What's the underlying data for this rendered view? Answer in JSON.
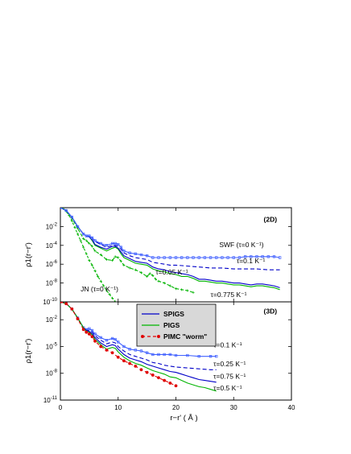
{
  "chart_data": [
    {
      "type": "line",
      "panel_tag": "(2D)",
      "ylabel": "ρ1(r−r')",
      "xlim": [
        0,
        40
      ],
      "ylim_log10": [
        -10,
        0
      ],
      "y_ticks": [
        {
          "exp": -2,
          "text": "10-2"
        },
        {
          "exp": -4,
          "text": "10-4"
        },
        {
          "exp": -6,
          "text": "10-6"
        },
        {
          "exp": -8,
          "text": "10-8"
        },
        {
          "exp": -10,
          "text": "10-10"
        }
      ],
      "series": [
        {
          "id": "jn",
          "color": "#00b400",
          "dash": "3,2",
          "marker": "plus",
          "x": [
            0,
            0.5,
            1,
            1.5,
            2,
            2.5,
            3,
            3.5,
            4,
            4.5,
            5,
            5.5,
            6,
            6.5,
            7,
            7.5,
            8,
            8.5,
            9,
            9.5
          ],
          "log10": [
            0,
            -0.1,
            -0.4,
            -0.8,
            -1.4,
            -2.1,
            -2.8,
            -3.5,
            -4.2,
            -4.9,
            -5.6,
            -6.1,
            -6.7,
            -7.3,
            -7.8,
            -8.3,
            -8.8,
            -9.2,
            -9.6,
            -10
          ]
        },
        {
          "id": "tau005",
          "color": "#00b400",
          "dash": "4,2",
          "marker": "plus",
          "x": [
            0,
            1,
            2,
            3,
            4,
            4.5,
            5,
            5.5,
            6,
            7,
            8,
            9,
            9.5,
            10,
            10.5,
            11,
            12,
            13,
            14,
            15,
            15.5,
            16,
            16.5,
            17,
            18,
            19,
            20,
            21,
            22,
            23
          ],
          "log10": [
            0,
            -0.3,
            -1.1,
            -2.2,
            -3.3,
            -3.5,
            -3.8,
            -4.1,
            -4.6,
            -5.0,
            -5.5,
            -5.6,
            -5.2,
            -5.3,
            -5.7,
            -6.1,
            -6.4,
            -6.6,
            -6.9,
            -7.3,
            -7.0,
            -7.2,
            -7.6,
            -7.8,
            -8.0,
            -8.3,
            -8.6,
            -8.7,
            -8.8,
            -9.0
          ]
        },
        {
          "id": "pigs2d",
          "color": "#00b400",
          "dash": "",
          "marker": "none",
          "x": [
            0,
            1,
            2,
            3,
            4,
            4.5,
            5,
            5.5,
            6,
            7,
            8,
            9,
            9.5,
            10,
            10.5,
            11,
            12,
            13,
            14,
            15,
            16,
            17,
            18,
            19,
            20,
            21,
            22,
            23,
            24,
            25,
            26,
            27,
            28,
            29,
            30,
            31,
            32,
            33,
            34,
            35,
            36,
            37,
            38
          ],
          "log10": [
            0,
            -0.3,
            -1.0,
            -2.0,
            -2.8,
            -3.0,
            -3.1,
            -3.5,
            -4.0,
            -4.3,
            -4.6,
            -4.3,
            -4.2,
            -4.4,
            -4.9,
            -5.3,
            -5.6,
            -5.9,
            -6.0,
            -6.1,
            -6.5,
            -6.7,
            -6.8,
            -7.0,
            -7.1,
            -7.3,
            -7.3,
            -7.5,
            -7.8,
            -7.8,
            -7.9,
            -8.0,
            -8.0,
            -8.1,
            -8.2,
            -8.2,
            -8.3,
            -8.4,
            -8.3,
            -8.3,
            -8.4,
            -8.5,
            -8.7
          ]
        },
        {
          "id": "tau0775",
          "color": "#0000c8",
          "dash": "",
          "marker": "none",
          "x": [
            0,
            1,
            2,
            3,
            4,
            4.5,
            5,
            5.5,
            6,
            7,
            8,
            9,
            9.5,
            10,
            10.5,
            11,
            12,
            13,
            14,
            15,
            16,
            17,
            18,
            19,
            20,
            21,
            22,
            23,
            24,
            25,
            26,
            27,
            28,
            29,
            30,
            31,
            32,
            33,
            34,
            35,
            36,
            37,
            38
          ],
          "log10": [
            0,
            -0.3,
            -1.0,
            -2.0,
            -2.8,
            -3.0,
            -3.1,
            -3.4,
            -3.9,
            -4.2,
            -4.4,
            -4.1,
            -4.1,
            -4.3,
            -4.7,
            -5.1,
            -5.4,
            -5.7,
            -5.8,
            -5.9,
            -6.3,
            -6.5,
            -6.6,
            -6.8,
            -6.9,
            -7.0,
            -7.1,
            -7.3,
            -7.6,
            -7.6,
            -7.7,
            -7.8,
            -7.8,
            -7.9,
            -8.0,
            -8.0,
            -8.1,
            -8.2,
            -8.1,
            -8.1,
            -8.2,
            -8.3,
            -8.5
          ]
        },
        {
          "id": "tau01",
          "color": "#0000c8",
          "dash": "5,3",
          "marker": "none",
          "x": [
            0,
            1,
            2,
            3,
            4,
            4.5,
            5,
            5.5,
            6,
            7,
            8,
            9,
            9.5,
            10,
            10.5,
            11,
            12,
            13,
            14,
            15,
            16,
            17,
            18,
            19,
            20,
            22,
            24,
            26,
            28,
            30,
            32,
            34,
            36,
            38
          ],
          "log10": [
            0,
            -0.3,
            -1.0,
            -2.0,
            -2.8,
            -3.0,
            -3.0,
            -3.2,
            -3.6,
            -3.9,
            -4.2,
            -4.0,
            -4.0,
            -4.1,
            -4.4,
            -4.8,
            -5.1,
            -5.3,
            -5.4,
            -5.5,
            -5.8,
            -5.9,
            -6.0,
            -6.1,
            -6.1,
            -6.2,
            -6.3,
            -6.4,
            -6.4,
            -6.5,
            -6.5,
            -6.5,
            -6.6,
            -6.6
          ]
        },
        {
          "id": "swf",
          "color": "#4060ff",
          "dash": "",
          "marker": "square",
          "x": [
            0,
            1,
            2,
            3,
            4,
            4.5,
            5,
            5.5,
            6,
            7,
            8,
            9,
            9.5,
            10,
            10.5,
            11,
            12,
            13,
            14,
            15,
            16,
            17,
            18,
            19,
            20,
            21,
            22,
            23,
            24,
            25,
            26,
            27,
            28,
            29,
            30,
            31,
            32,
            33,
            34,
            35,
            36,
            37,
            38
          ],
          "log10": [
            0,
            -0.3,
            -1.0,
            -2.0,
            -2.8,
            -3.0,
            -3.0,
            -3.2,
            -3.5,
            -3.8,
            -4.0,
            -3.8,
            -3.8,
            -3.9,
            -4.2,
            -4.6,
            -4.8,
            -4.9,
            -5.0,
            -5.1,
            -5.3,
            -5.3,
            -5.3,
            -5.3,
            -5.3,
            -5.3,
            -5.3,
            -5.3,
            -5.3,
            -5.3,
            -5.3,
            -5.3,
            -5.3,
            -5.3,
            -5.3,
            -5.3,
            -5.2,
            -5.2,
            -5.2,
            -5.2,
            -5.2,
            -5.2,
            -5.3
          ]
        }
      ],
      "annotations": [
        {
          "text": "(2D)",
          "x": 37.5,
          "log10": -1.5,
          "bold": true,
          "anchor": "end"
        },
        {
          "text": "SWF (τ=0 K⁻¹)",
          "x": 27.5,
          "log10": -4.2,
          "anchor": "start"
        },
        {
          "text": "τ=0.1 K⁻¹",
          "x": 30.5,
          "log10": -5.9,
          "anchor": "start"
        },
        {
          "text": "τ=0.05 K⁻¹",
          "x": 16.5,
          "log10": -7.1,
          "anchor": "start"
        },
        {
          "text": "τ=0.775 K⁻¹",
          "x": 26.0,
          "log10": -9.5,
          "anchor": "start"
        },
        {
          "text": "JN (τ=0 K⁻¹)",
          "x": 3.5,
          "log10": -8.9,
          "anchor": "start"
        }
      ]
    },
    {
      "type": "line",
      "panel_tag": "(3D)",
      "ylabel": "ρ1(r−r')",
      "xlabel": "r−r'   ( Å )",
      "xlim": [
        0,
        40
      ],
      "ylim_log10": [
        -11,
        0
      ],
      "x_ticks": [
        0,
        10,
        20,
        30,
        40
      ],
      "y_ticks": [
        {
          "exp": -2,
          "text": "10-2"
        },
        {
          "exp": -5,
          "text": "10-5"
        },
        {
          "exp": -8,
          "text": "10-8"
        },
        {
          "exp": -11,
          "text": "10-11"
        }
      ],
      "series": [
        {
          "id": "tau01_3d",
          "color": "#4060ff",
          "dash": "",
          "marker": "square",
          "x": [
            0,
            1,
            2,
            3,
            4,
            4.5,
            5,
            5.5,
            6,
            7,
            8,
            9,
            9.5,
            10,
            11,
            12,
            13,
            14,
            15,
            16,
            17,
            18,
            19,
            20,
            22,
            24,
            26,
            27
          ],
          "log10": [
            0,
            -0.2,
            -0.8,
            -1.8,
            -2.9,
            -3.1,
            -3.0,
            -3.2,
            -3.6,
            -4.0,
            -4.3,
            -4.1,
            -4.2,
            -4.5,
            -5.0,
            -5.3,
            -5.4,
            -5.5,
            -5.7,
            -5.9,
            -5.9,
            -5.9,
            -5.9,
            -6.0,
            -6.0,
            -6.1,
            -6.1,
            -6.1
          ]
        },
        {
          "id": "tau025_3d",
          "color": "#0000c8",
          "dash": "5,3",
          "marker": "none",
          "x": [
            0,
            1,
            2,
            3,
            4,
            4.5,
            5,
            5.5,
            6,
            7,
            8,
            9,
            9.5,
            10,
            11,
            12,
            13,
            14,
            15,
            16,
            17,
            18,
            19,
            20,
            22,
            24,
            26,
            27
          ],
          "log10": [
            0,
            -0.2,
            -0.8,
            -1.8,
            -2.9,
            -3.2,
            -3.2,
            -3.4,
            -3.8,
            -4.3,
            -4.7,
            -4.5,
            -4.6,
            -5.0,
            -5.5,
            -5.9,
            -6.1,
            -6.3,
            -6.5,
            -6.8,
            -6.9,
            -7.1,
            -7.2,
            -7.3,
            -7.4,
            -7.5,
            -7.6,
            -7.6
          ]
        },
        {
          "id": "spigs_3d",
          "color": "#0000c8",
          "dash": "",
          "marker": "none",
          "x": [
            0,
            1,
            2,
            3,
            4,
            4.5,
            5,
            5.5,
            6,
            7,
            8,
            9,
            9.5,
            10,
            11,
            12,
            13,
            14,
            15,
            16,
            17,
            18,
            19,
            20,
            21,
            22,
            23,
            24,
            25,
            26,
            27
          ],
          "log10": [
            0,
            -0.2,
            -0.8,
            -1.8,
            -2.9,
            -3.2,
            -3.3,
            -3.6,
            -4.0,
            -4.6,
            -5.0,
            -4.8,
            -4.9,
            -5.3,
            -5.9,
            -6.3,
            -6.5,
            -6.7,
            -7.0,
            -7.2,
            -7.4,
            -7.6,
            -7.8,
            -7.9,
            -8.1,
            -8.3,
            -8.5,
            -8.7,
            -8.8,
            -8.9,
            -9.0
          ]
        },
        {
          "id": "pigs_3d",
          "color": "#00b400",
          "dash": "",
          "marker": "none",
          "x": [
            0,
            1,
            2,
            3,
            4,
            4.5,
            5,
            5.5,
            6,
            7,
            8,
            9,
            9.5,
            10,
            11,
            12,
            13,
            14,
            15,
            16,
            17,
            18,
            19,
            20,
            21,
            22,
            23,
            24,
            25,
            26,
            27
          ],
          "log10": [
            0,
            -0.2,
            -0.8,
            -1.8,
            -2.9,
            -3.3,
            -3.4,
            -3.7,
            -4.2,
            -4.8,
            -5.3,
            -5.1,
            -5.2,
            -5.6,
            -6.2,
            -6.6,
            -6.9,
            -7.1,
            -7.4,
            -7.7,
            -7.9,
            -8.1,
            -8.4,
            -8.5,
            -8.8,
            -9.1,
            -9.3,
            -9.5,
            -9.6,
            -9.8,
            -10.0
          ]
        },
        {
          "id": "pimc_3d",
          "color": "#e00000",
          "dash": "4,3",
          "marker": "circle",
          "x": [
            0,
            1,
            2,
            3,
            4,
            4.5,
            5,
            5.5,
            6,
            7,
            8,
            9,
            10,
            11,
            12,
            13,
            14,
            15,
            16,
            17,
            18,
            19,
            20
          ],
          "log10": [
            0,
            -0.2,
            -0.8,
            -1.9,
            -3.1,
            -3.4,
            -3.6,
            -3.9,
            -4.4,
            -5.0,
            -5.4,
            -5.7,
            -6.2,
            -6.6,
            -6.9,
            -7.2,
            -7.6,
            -7.9,
            -8.2,
            -8.5,
            -8.8,
            -9.1,
            -9.4
          ]
        }
      ],
      "legend": [
        {
          "label": "SPIGS",
          "color": "#0000c8",
          "dash": "",
          "marker": "none"
        },
        {
          "label": "PIGS",
          "color": "#00b400",
          "dash": "",
          "marker": "none"
        },
        {
          "label": "PIMC \"worm\"",
          "color": "#e00000",
          "dash": "4,3",
          "marker": "circle"
        }
      ],
      "annotations": [
        {
          "text": "(3D)",
          "x": 37.5,
          "log10": -1.3,
          "bold": true,
          "anchor": "end"
        },
        {
          "text": "τ=0.1 K⁻¹",
          "x": 26.5,
          "log10": -5.1,
          "anchor": "start"
        },
        {
          "text": "τ=0.25 K⁻¹",
          "x": 26.5,
          "log10": -7.2,
          "anchor": "start"
        },
        {
          "text": "τ=0.75 K⁻¹",
          "x": 26.5,
          "log10": -8.6,
          "anchor": "start"
        },
        {
          "text": "τ=0.5 K⁻¹",
          "x": 26.5,
          "log10": -9.9,
          "anchor": "start"
        }
      ]
    }
  ]
}
